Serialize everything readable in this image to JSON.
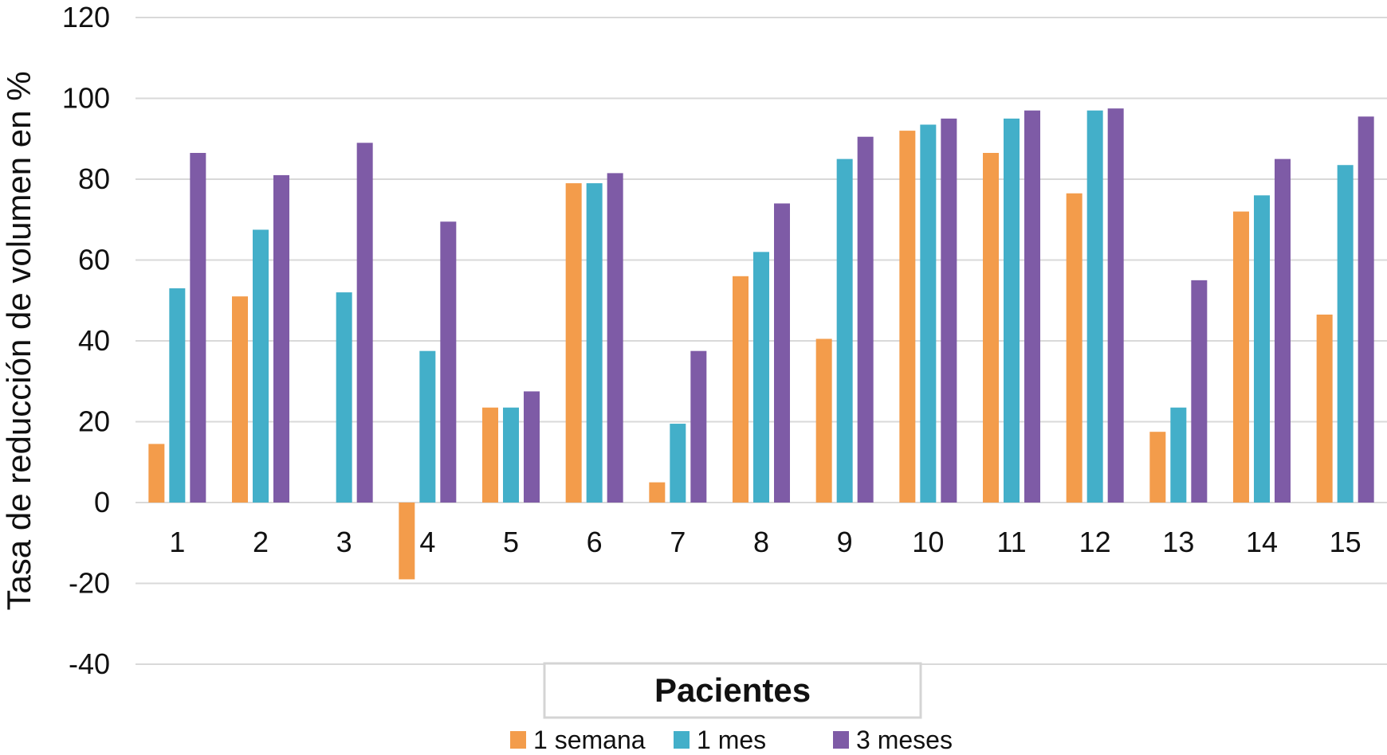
{
  "chart_data": {
    "type": "bar",
    "xlabel": "Pacientes",
    "ylabel": "Tasa de reducción de volumen en %",
    "categories": [
      "1",
      "2",
      "3",
      "4",
      "5",
      "6",
      "7",
      "8",
      "9",
      "10",
      "11",
      "12",
      "13",
      "14",
      "15"
    ],
    "ylim": [
      -40,
      120
    ],
    "yticks": [
      -40,
      -20,
      0,
      20,
      40,
      60,
      80,
      100,
      120
    ],
    "grid": true,
    "legend_position": "bottom",
    "series": [
      {
        "name": "1 semana",
        "color": "#F39C4B",
        "values": [
          14.5,
          51,
          null,
          -19,
          23.5,
          79,
          5,
          56,
          40.5,
          92,
          86.5,
          76.5,
          17.5,
          72,
          46.5
        ]
      },
      {
        "name": "1 mes",
        "color": "#43AFC9",
        "values": [
          53,
          67.5,
          52,
          37.5,
          23.5,
          79,
          19.5,
          62,
          85,
          93.5,
          95,
          97,
          23.5,
          76,
          83.5
        ]
      },
      {
        "name": "3 meses",
        "color": "#7E5BA6",
        "values": [
          86.5,
          81,
          89,
          69.5,
          27.5,
          81.5,
          37.5,
          74,
          90.5,
          95,
          97,
          97.5,
          55,
          85,
          95.5
        ]
      }
    ]
  }
}
